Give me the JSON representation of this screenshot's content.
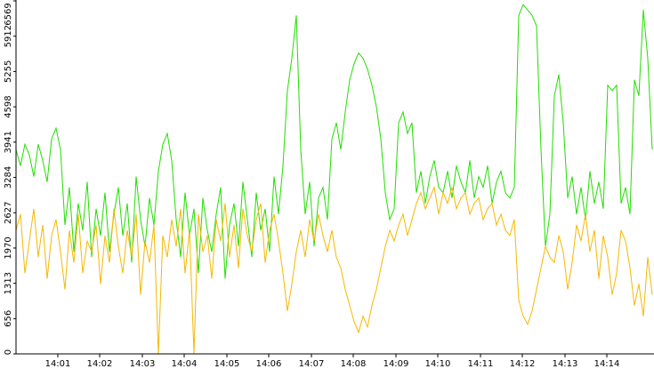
{
  "chart_data": {
    "type": "line",
    "x": [
      0,
      1,
      2,
      3,
      4,
      5,
      6,
      7,
      8,
      9,
      10,
      11,
      12,
      13,
      14,
      15,
      16,
      17,
      18,
      19,
      20,
      21,
      22,
      23,
      24,
      25,
      26,
      27,
      28,
      29,
      30,
      31,
      32,
      33,
      34,
      35,
      36,
      37,
      38,
      39,
      40,
      41,
      42,
      43,
      44,
      45,
      46,
      47,
      48,
      49,
      50,
      51,
      52,
      53,
      54,
      55,
      56,
      57,
      58,
      59,
      60,
      61,
      62,
      63,
      64,
      65,
      66,
      67,
      68,
      69,
      70,
      71,
      72,
      73,
      74,
      75,
      76,
      77,
      78,
      79,
      80,
      81,
      82,
      83,
      84,
      85,
      86,
      87,
      88,
      89,
      90,
      91,
      92,
      93,
      94,
      95,
      96,
      97,
      98,
      99,
      100,
      101,
      102,
      103,
      104,
      105,
      106,
      107,
      108,
      109,
      110,
      111,
      112,
      113,
      114,
      115,
      116,
      117,
      118,
      119,
      120,
      121,
      122,
      123,
      124,
      125,
      126,
      127,
      128,
      129,
      130,
      131,
      132,
      133,
      134,
      135,
      136,
      137,
      138,
      139,
      140,
      141,
      142,
      143
    ],
    "xlim": [
      0,
      143
    ],
    "xticks": [
      {
        "value": 9.4,
        "label": "14:01"
      },
      {
        "value": 18.8,
        "label": "14:02"
      },
      {
        "value": 28.4,
        "label": "14:03"
      },
      {
        "value": 37.8,
        "label": "14:04"
      },
      {
        "value": 47.4,
        "label": "14:05"
      },
      {
        "value": 56.8,
        "label": "14:06"
      },
      {
        "value": 66.4,
        "label": "14:07"
      },
      {
        "value": 75.8,
        "label": "14:08"
      },
      {
        "value": 85.4,
        "label": "14:09"
      },
      {
        "value": 94.8,
        "label": "14:10"
      },
      {
        "value": 104.4,
        "label": "14:11"
      },
      {
        "value": 113.8,
        "label": "14:12"
      },
      {
        "value": 123.4,
        "label": "14:13"
      },
      {
        "value": 132.8,
        "label": "14:14"
      }
    ],
    "ylim": [
      0,
      6569
    ],
    "yticks": [
      0,
      656,
      1313,
      1970,
      2627,
      3284,
      3941,
      4598,
      5255,
      5912,
      6569
    ],
    "series": [
      {
        "color": "#22dd00",
        "values": [
          3800,
          3500,
          3900,
          3700,
          3300,
          3900,
          3600,
          3200,
          4000,
          4200,
          3800,
          2400,
          3100,
          1900,
          2800,
          2300,
          3200,
          1800,
          2700,
          2200,
          3000,
          1900,
          2600,
          3100,
          2200,
          2800,
          1700,
          3300,
          2500,
          2000,
          2900,
          2400,
          3400,
          3900,
          4100,
          3600,
          2500,
          1800,
          3000,
          2200,
          2700,
          1500,
          2900,
          2300,
          1900,
          2600,
          3100,
          1400,
          2400,
          2800,
          2000,
          3200,
          2500,
          1800,
          3000,
          2300,
          2700,
          1900,
          3300,
          2600,
          3500,
          4900,
          5500,
          6300,
          3800,
          2600,
          3200,
          2000,
          2900,
          3100,
          2500,
          4000,
          4300,
          3800,
          4500,
          5100,
          5400,
          5600,
          5500,
          5300,
          5000,
          4600,
          4000,
          3000,
          2500,
          2700,
          4300,
          4500,
          4100,
          4300,
          3000,
          3400,
          2800,
          3300,
          3600,
          3100,
          3000,
          3400,
          2900,
          3500,
          3200,
          3000,
          3600,
          2900,
          3300,
          3100,
          3500,
          2800,
          3200,
          3400,
          3000,
          2900,
          3100,
          6300,
          6500,
          6400,
          6300,
          6100,
          3800,
          2000,
          2600,
          4800,
          5200,
          4300,
          2900,
          3300,
          2600,
          3100,
          2500,
          3400,
          2800,
          3200,
          2700,
          5000,
          4900,
          5000,
          2800,
          3100,
          2600,
          5100,
          4800,
          6400,
          5500,
          3800
        ]
      },
      {
        "color": "#f5b800",
        "values": [
          2300,
          2600,
          1500,
          2100,
          2700,
          1800,
          2400,
          1400,
          2200,
          2500,
          1900,
          1200,
          2300,
          1700,
          2600,
          1500,
          2100,
          1900,
          2400,
          1300,
          2200,
          1700,
          2700,
          2000,
          1500,
          2300,
          1800,
          2600,
          1100,
          2100,
          1700,
          2400,
          0,
          2200,
          1800,
          2500,
          2000,
          2700,
          1500,
          2300,
          0,
          2600,
          1900,
          2200,
          1400,
          2500,
          2100,
          2800,
          1800,
          2400,
          1600,
          2700,
          2200,
          1900,
          2500,
          2800,
          1700,
          2300,
          2600,
          2100,
          1500,
          800,
          1300,
          1900,
          2300,
          1800,
          2500,
          2100,
          2600,
          2200,
          1900,
          2300,
          1800,
          1600,
          1200,
          900,
          600,
          400,
          700,
          500,
          900,
          1200,
          1600,
          2000,
          2300,
          2100,
          2400,
          2600,
          2200,
          2500,
          2800,
          3000,
          2700,
          2900,
          3100,
          2600,
          3000,
          2800,
          3100,
          2700,
          2900,
          3000,
          2600,
          2800,
          2900,
          2500,
          2700,
          2800,
          2400,
          2600,
          2300,
          2200,
          2500,
          1000,
          700,
          550,
          800,
          1200,
          1600,
          2000,
          1800,
          1700,
          2200,
          1900,
          1200,
          1700,
          2400,
          2100,
          2600,
          1900,
          2300,
          1400,
          2200,
          1800,
          1100,
          1500,
          2300,
          2100,
          1600,
          900,
          1300,
          700,
          1800,
          1100
        ]
      }
    ]
  }
}
